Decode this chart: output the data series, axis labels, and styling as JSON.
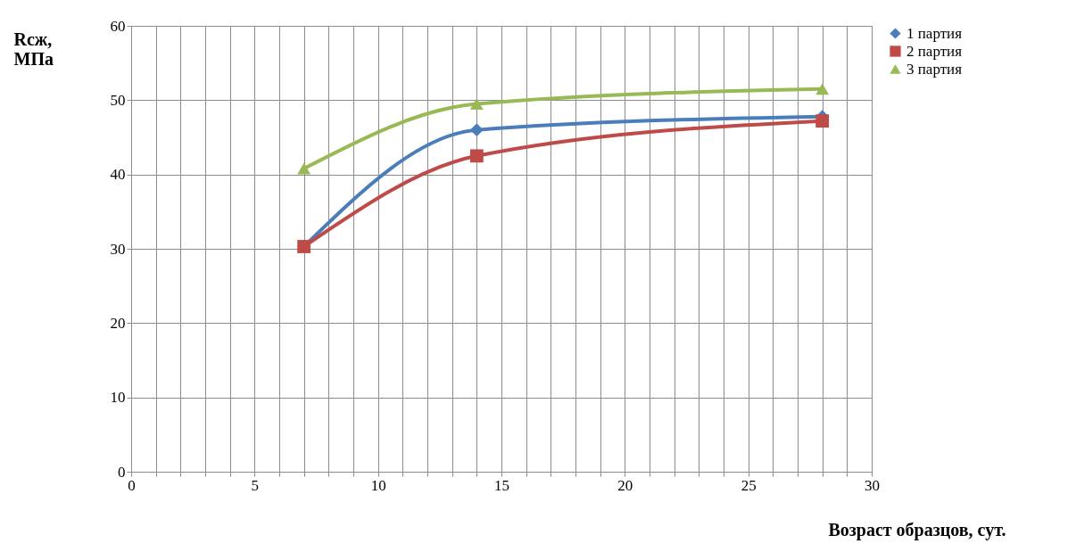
{
  "chart_data": {
    "type": "line",
    "xlabel": "Возраст образцов, сут.",
    "ylabel": "Rсж,\nМПа",
    "x": [
      7,
      14,
      28
    ],
    "series": [
      {
        "name": "1 партия",
        "color": "#4a7ebb",
        "marker": "diamond",
        "values": [
          30.3,
          46,
          47.8
        ]
      },
      {
        "name": "2 партия",
        "color": "#be4b48",
        "marker": "square",
        "values": [
          30.3,
          42.5,
          47.2
        ]
      },
      {
        "name": "3 партия",
        "color": "#98b954",
        "marker": "triangle",
        "values": [
          40.8,
          49.5,
          51.5
        ]
      }
    ],
    "xlim": [
      0,
      30
    ],
    "xticks": [
      0,
      {
        "value": 1,
        "label": null
      },
      {
        "value": 2,
        "label": null
      },
      {
        "value": 3,
        "label": null
      },
      {
        "value": 4,
        "label": null
      },
      5,
      {
        "value": 6,
        "label": null
      },
      {
        "value": 7,
        "label": null
      },
      {
        "value": 8,
        "label": null
      },
      {
        "value": 9,
        "label": null
      },
      10,
      {
        "value": 11,
        "label": null
      },
      {
        "value": 12,
        "label": null
      },
      {
        "value": 13,
        "label": null
      },
      {
        "value": 14,
        "label": null
      },
      15,
      {
        "value": 16,
        "label": null
      },
      {
        "value": 17,
        "label": null
      },
      {
        "value": 18,
        "label": null
      },
      {
        "value": 19,
        "label": null
      },
      20,
      {
        "value": 21,
        "label": null
      },
      {
        "value": 22,
        "label": null
      },
      {
        "value": 23,
        "label": null
      },
      {
        "value": 24,
        "label": null
      },
      25,
      {
        "value": 26,
        "label": null
      },
      {
        "value": 27,
        "label": null
      },
      {
        "value": 28,
        "label": null
      },
      {
        "value": 29,
        "label": null
      },
      30
    ],
    "ylim": [
      0,
      60
    ],
    "yticks": [
      0,
      10,
      20,
      30,
      40,
      50,
      60
    ],
    "grid": true,
    "legend": "right",
    "line_style": "solid"
  }
}
